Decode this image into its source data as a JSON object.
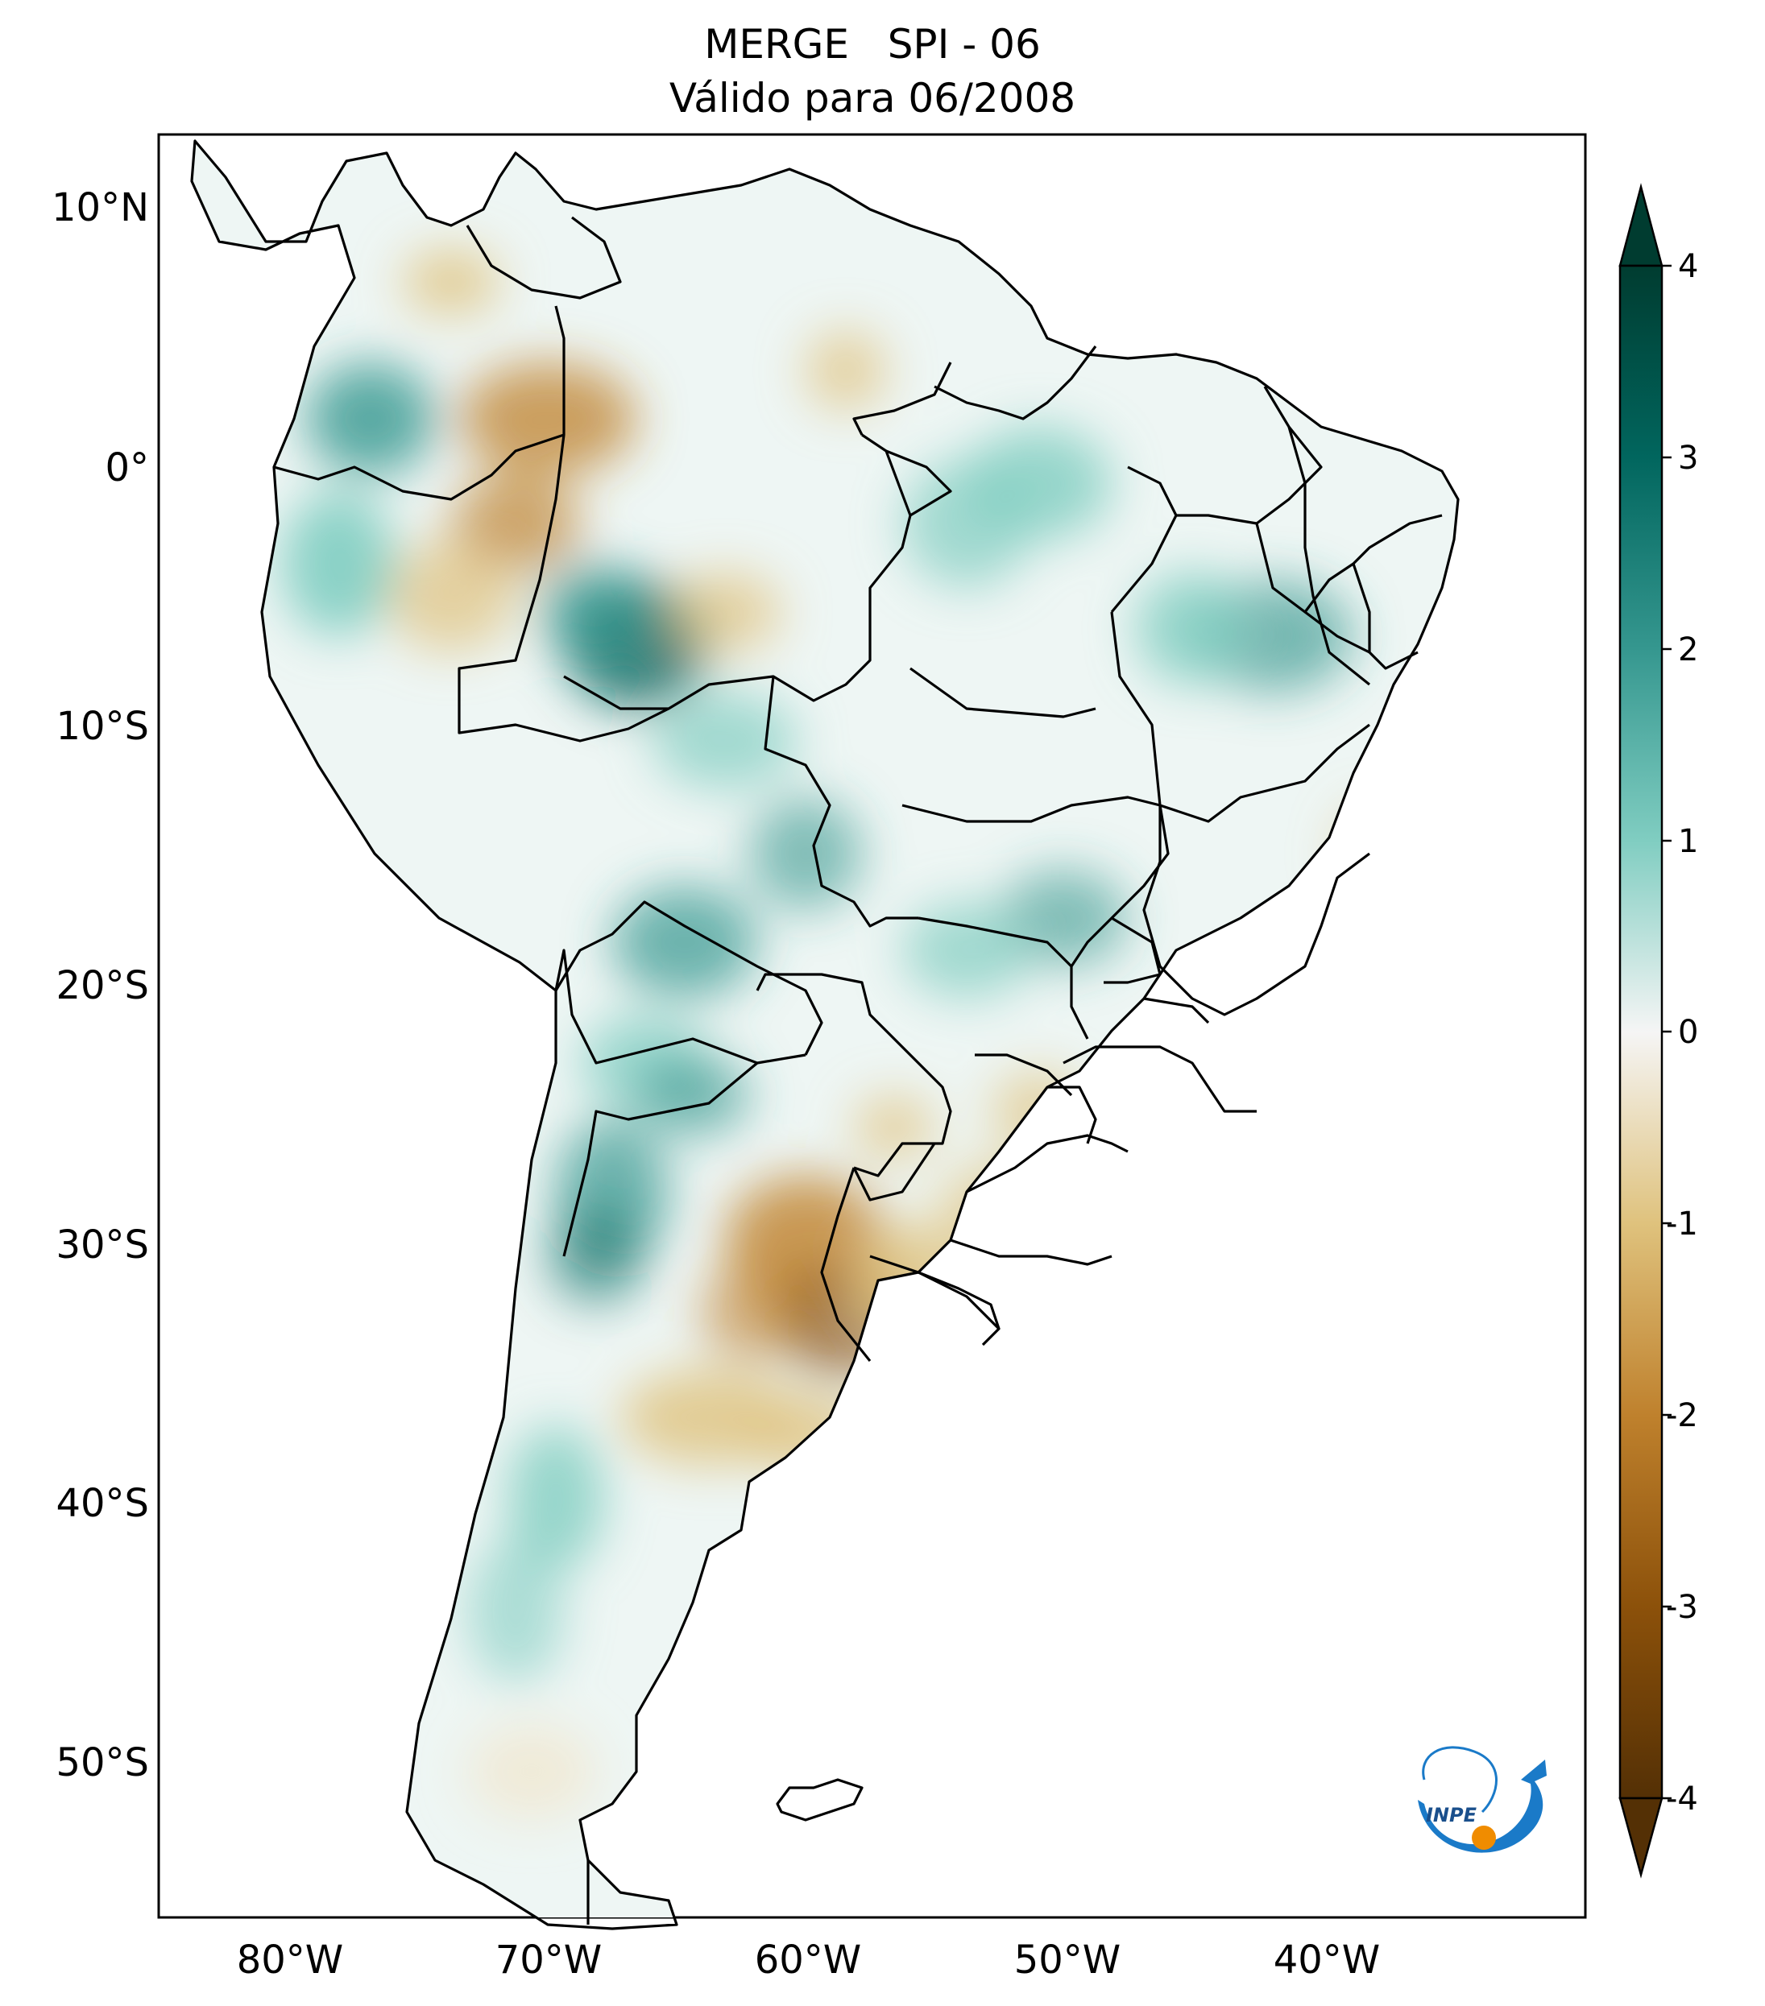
{
  "title": {
    "line1": "MERGE   SPI - 06",
    "line2": "Válido para 06/2008"
  },
  "map": {
    "lat_labels": [
      "10°N",
      "0°",
      "10°S",
      "20°S",
      "30°S",
      "40°S",
      "50°S"
    ],
    "lon_labels": [
      "80°W",
      "70°W",
      "60°W",
      "50°W",
      "40°W"
    ],
    "lat_range": [
      -56,
      13
    ],
    "lon_range": [
      -85,
      -30
    ],
    "colormap": "BrBG"
  },
  "colorbar": {
    "ticks": [
      "4",
      "3",
      "2",
      "1",
      "0",
      "-1",
      "-2",
      "-3",
      "-4"
    ],
    "range": [
      -4,
      4
    ],
    "extend": "both",
    "colors": {
      "dry_extreme": "#543005",
      "dry": "#bf812d",
      "neutral": "#f5f5f5",
      "wet": "#80cdc1",
      "wet_extreme": "#003c30"
    }
  },
  "logo": {
    "text": "INPE",
    "accent": "#1a7ac8",
    "orange": "#f08c00"
  }
}
